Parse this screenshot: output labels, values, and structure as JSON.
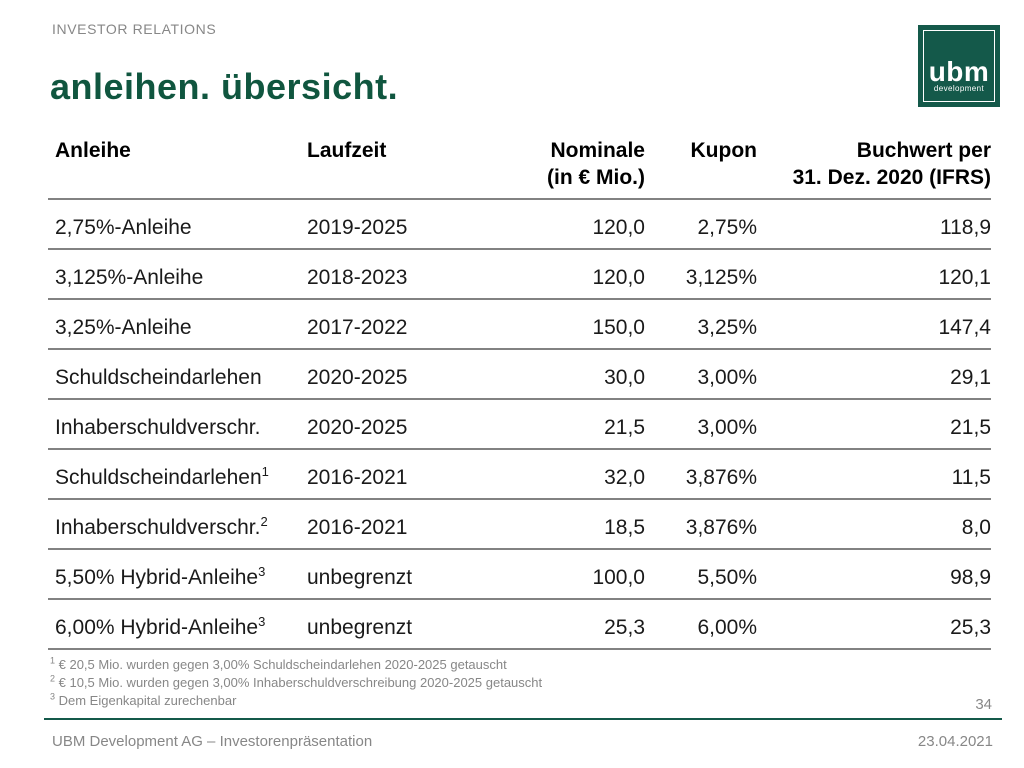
{
  "header": {
    "eyebrow": "INVESTOR RELATIONS",
    "title": "anleihen. übersicht.",
    "logo": {
      "text": "ubm",
      "subtext": "development"
    }
  },
  "colors": {
    "brand_green": "#14594a",
    "text_gray": "#878787",
    "separator_gray": "#828282"
  },
  "table": {
    "columns": [
      {
        "label": "Anleihe",
        "label2": "",
        "align": "left"
      },
      {
        "label": "Laufzeit",
        "label2": "",
        "align": "left"
      },
      {
        "label": "Nominale",
        "label2": "(in € Mio.)",
        "align": "right"
      },
      {
        "label": "Kupon",
        "label2": "",
        "align": "right"
      },
      {
        "label": "Buchwert per",
        "label2": "31. Dez. 2020 (IFRS)",
        "align": "right"
      }
    ],
    "rows": [
      {
        "anleihe": "2,75%-Anleihe",
        "sup": "",
        "laufzeit": "2019-2025",
        "nominale": "120,0",
        "kupon": "2,75%",
        "buchwert": "118,9"
      },
      {
        "anleihe": "3,125%-Anleihe",
        "sup": "",
        "laufzeit": "2018-2023",
        "nominale": "120,0",
        "kupon": "3,125%",
        "buchwert": "120,1"
      },
      {
        "anleihe": "3,25%-Anleihe",
        "sup": "",
        "laufzeit": "2017-2022",
        "nominale": "150,0",
        "kupon": "3,25%",
        "buchwert": "147,4"
      },
      {
        "anleihe": "Schuldscheindarlehen",
        "sup": "",
        "laufzeit": "2020-2025",
        "nominale": "30,0",
        "kupon": "3,00%",
        "buchwert": "29,1"
      },
      {
        "anleihe": "Inhaberschuldverschr.",
        "sup": "",
        "laufzeit": "2020-2025",
        "nominale": "21,5",
        "kupon": "3,00%",
        "buchwert": "21,5"
      },
      {
        "anleihe": "Schuldscheindarlehen",
        "sup": "1",
        "laufzeit": "2016-2021",
        "nominale": "32,0",
        "kupon": "3,876%",
        "buchwert": "11,5"
      },
      {
        "anleihe": "Inhaberschuldverschr.",
        "sup": "2",
        "laufzeit": "2016-2021",
        "nominale": "18,5",
        "kupon": "3,876%",
        "buchwert": "8,0"
      },
      {
        "anleihe": "5,50% Hybrid-Anleihe",
        "sup": "3",
        "laufzeit": "unbegrenzt",
        "nominale": "100,0",
        "kupon": "5,50%",
        "buchwert": "98,9"
      },
      {
        "anleihe": "6,00% Hybrid-Anleihe",
        "sup": "3",
        "laufzeit": "unbegrenzt",
        "nominale": "25,3",
        "kupon": "6,00%",
        "buchwert": "25,3"
      }
    ]
  },
  "footnotes": [
    {
      "sup": "1",
      "text": "€ 20,5 Mio. wurden gegen 3,00% Schuldscheindarlehen 2020-2025 getauscht"
    },
    {
      "sup": "2",
      "text": "€ 10,5 Mio. wurden gegen 3,00% Inhaberschuldverschreibung 2020-2025 getauscht"
    },
    {
      "sup": "3",
      "text": "Dem Eigenkapital zurechenbar"
    }
  ],
  "footer": {
    "page_number": "34",
    "left": "UBM Development AG – Investorenpräsentation",
    "right": "23.04.2021"
  }
}
